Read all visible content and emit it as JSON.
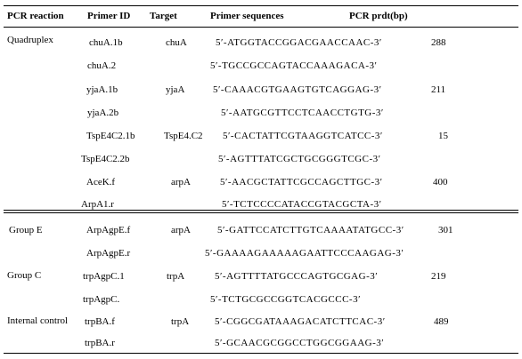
{
  "table": {
    "headers": {
      "reaction": "PCR reaction",
      "primer_id": "Primer ID",
      "target": "Target",
      "sequence": "Primer sequences",
      "product": "PCR prdt(bp)"
    },
    "groups": {
      "quadruplex": "Quadruplex",
      "group_e": "Group  E",
      "group_c": "Group C",
      "internal_control": "Internal control"
    },
    "rows": [
      {
        "primer": "chuA.1b",
        "target": "chuA",
        "sequence": "5′-ATGGTACCGGACGAACCAAC-3′",
        "product": "288"
      },
      {
        "primer": "chuA.2",
        "target": "",
        "sequence": "5′-TGCCGCCAGTACCAAAGACA-3′",
        "product": ""
      },
      {
        "primer": "yjaA.1b",
        "target": "yjaA",
        "sequence": "5′-CAAACGTGAAGTGTCAGGAG-3′",
        "product": "211"
      },
      {
        "primer": "yjaA.2b",
        "target": "",
        "sequence": "5′-AATGCGTTCCTCAACCTGTG-3′",
        "product": ""
      },
      {
        "primer": "TspE4C2.1b",
        "target": "TspE4.C2",
        "sequence": "5′-CACTATTCGTAAGGTCATCC-3′",
        "product": "15"
      },
      {
        "primer": "TspE4C2.2b",
        "target": "",
        "sequence": "5′-AGTTTATCGCTGCGGGTCGC-3′",
        "product": ""
      },
      {
        "primer": "AceK.f",
        "target": "arpA",
        "sequence": "5′-AACGCTATTCGCCAGCTTGC-3′",
        "product": "400"
      },
      {
        "primer": "ArpA1.r",
        "target": "",
        "sequence": "5′-TCTCCCCATACCGTACGCTA-3′",
        "product": ""
      },
      {
        "primer": "ArpAgpE.f",
        "target": "arpA",
        "sequence": "5′-GATTCCATCTTGTCAAAATATGCC-3′",
        "product": "301"
      },
      {
        "primer": "ArpAgpE.r",
        "target": "",
        "sequence": "5′-GAAAAGAAAAAGAATTCCCAAGAG-3′",
        "product": ""
      },
      {
        "primer": "trpAgpC.1",
        "target": "trpA",
        "sequence": "5′-AGTTTTATGCCCAGTGCGAG-3′",
        "product": "219"
      },
      {
        "primer": "trpAgpC.",
        "target": "",
        "sequence": "5′-TCTGCGCCGGTCACGCCC-3′",
        "product": ""
      },
      {
        "primer": "trpBA.f",
        "target": "trpA",
        "sequence": "5′-CGGCGATAAAGACATCTTCAC-3′",
        "product": "489"
      },
      {
        "primer": "trpBA.r",
        "target": "",
        "sequence": "5′-GCAACGCGGCCTGGCGGAAG-3′",
        "product": ""
      }
    ]
  }
}
